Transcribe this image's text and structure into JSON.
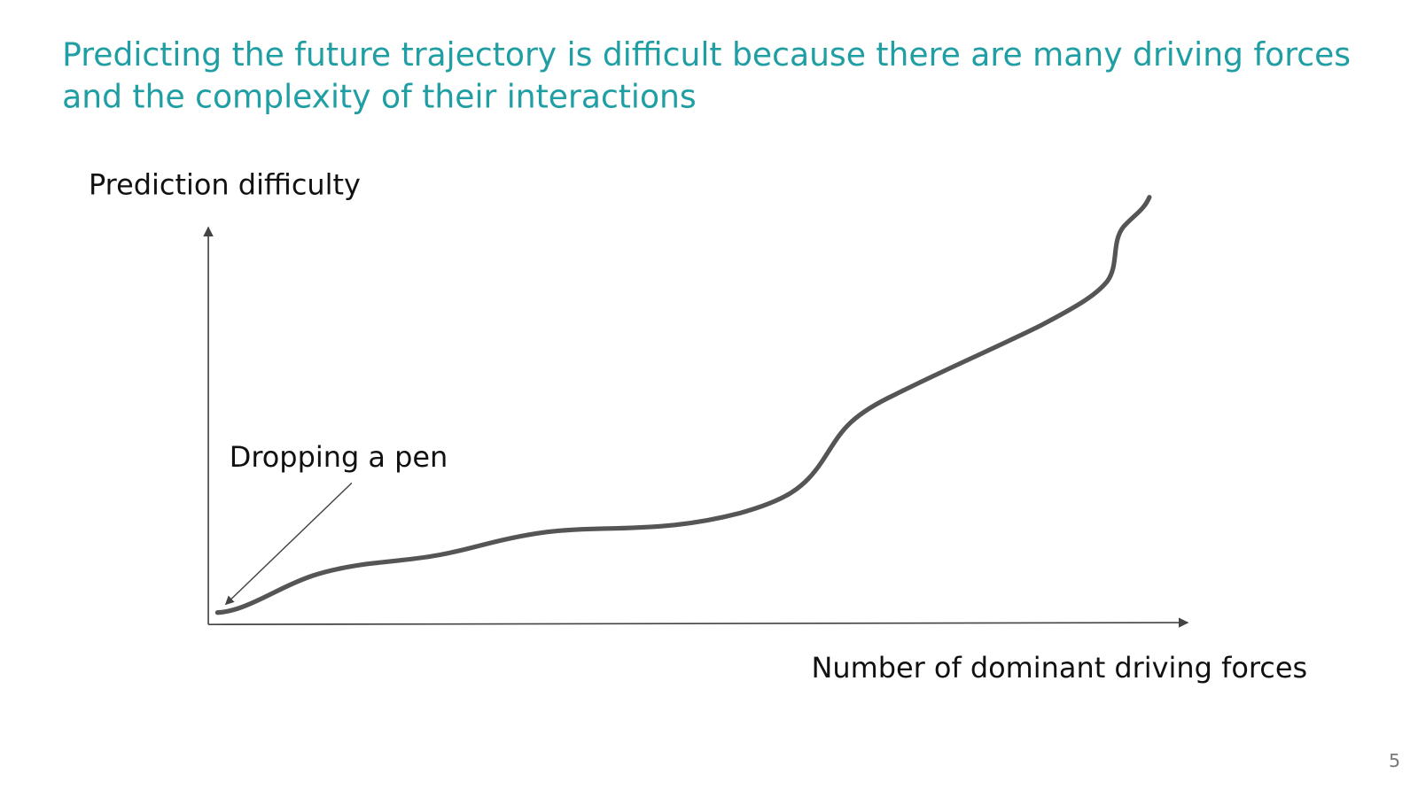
{
  "title": [
    "Predicting the future trajectory is difficult because there are many driving forces",
    "and the complexity of their interactions"
  ],
  "diagram": {
    "y_axis_label": "Prediction difficulty",
    "x_axis_label": "Number of dominant driving forces",
    "annotation": "Dropping a pen"
  },
  "page_number": "5"
}
